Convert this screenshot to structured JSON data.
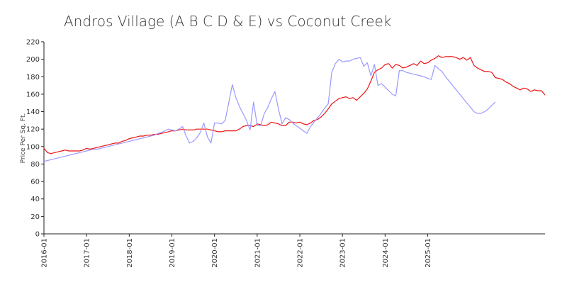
{
  "chart_data": {
    "type": "line",
    "title": "Andros Village (A B C D & E) vs Coconut Creek",
    "xlabel": "",
    "ylabel": "Price Per Sq. Ft.",
    "ylim": [
      0,
      220
    ],
    "yticks": [
      0,
      20,
      40,
      60,
      80,
      100,
      120,
      140,
      160,
      180,
      200,
      220
    ],
    "xticks": [
      "2016-01",
      "2017-01",
      "2018-01",
      "2019-01",
      "2020-01",
      "2021-01",
      "2022-01",
      "2023-01",
      "2024-01",
      "2025-01"
    ],
    "x_start": "2016-01",
    "grid": false,
    "legend": "none",
    "series": [
      {
        "color": "#ee1111",
        "values": [
          98,
          93,
          92,
          93,
          94,
          95,
          96,
          95,
          95,
          95,
          95,
          96,
          98,
          97,
          98,
          99,
          100,
          101,
          102,
          103,
          104,
          104,
          106,
          107,
          109,
          110,
          111,
          112,
          112,
          113,
          113,
          114,
          114,
          115,
          116,
          117,
          118,
          118,
          119,
          120,
          119,
          119,
          119,
          120,
          120,
          120,
          120,
          119,
          118,
          117,
          117,
          118,
          118,
          118,
          118,
          120,
          123,
          124,
          124,
          123,
          126,
          125,
          124,
          125,
          128,
          127,
          126,
          124,
          124,
          128,
          128,
          127,
          128,
          126,
          125,
          127,
          130,
          131,
          134,
          138,
          143,
          149,
          152,
          155,
          156,
          157,
          155,
          156,
          153,
          157,
          161,
          166,
          175,
          185,
          188,
          190,
          194,
          195,
          190,
          194,
          193,
          190,
          191,
          193,
          195,
          193,
          198,
          195,
          196,
          199,
          201,
          204,
          202,
          203,
          203,
          203,
          202,
          200,
          202,
          199,
          202,
          193,
          190,
          188,
          186,
          186,
          185,
          179,
          178,
          177,
          174,
          172,
          169,
          167,
          165,
          167,
          166,
          163,
          165,
          164,
          164,
          159
        ]
      },
      {
        "color": "#9999ff",
        "values": [
          83,
          84,
          85,
          86,
          87,
          88,
          89,
          90,
          91,
          92,
          93,
          94,
          95,
          96,
          97,
          97,
          98,
          99,
          100,
          101,
          102,
          103,
          104,
          105,
          106,
          107,
          108,
          109,
          110,
          111,
          112,
          113,
          115,
          116,
          118,
          120,
          119,
          118,
          120,
          123,
          112,
          104,
          106,
          110,
          116,
          127,
          111,
          104,
          127,
          127,
          126,
          130,
          150,
          171,
          156,
          146,
          138,
          130,
          119,
          151,
          124,
          124,
          138,
          145,
          155,
          163,
          143,
          126,
          133,
          131,
          127,
          124,
          121,
          118,
          115,
          123,
          128,
          133,
          138,
          144,
          149,
          185,
          195,
          200,
          197,
          198,
          198,
          200,
          201,
          202,
          192,
          196,
          181,
          194,
          170,
          172,
          168,
          164,
          160,
          158,
          187,
          187,
          185,
          184,
          183,
          182,
          181,
          180,
          178,
          177,
          193,
          189,
          186,
          180,
          175,
          170,
          165,
          160,
          155,
          150,
          145,
          140,
          138,
          138,
          140,
          143,
          147,
          151
        ]
      }
    ]
  }
}
